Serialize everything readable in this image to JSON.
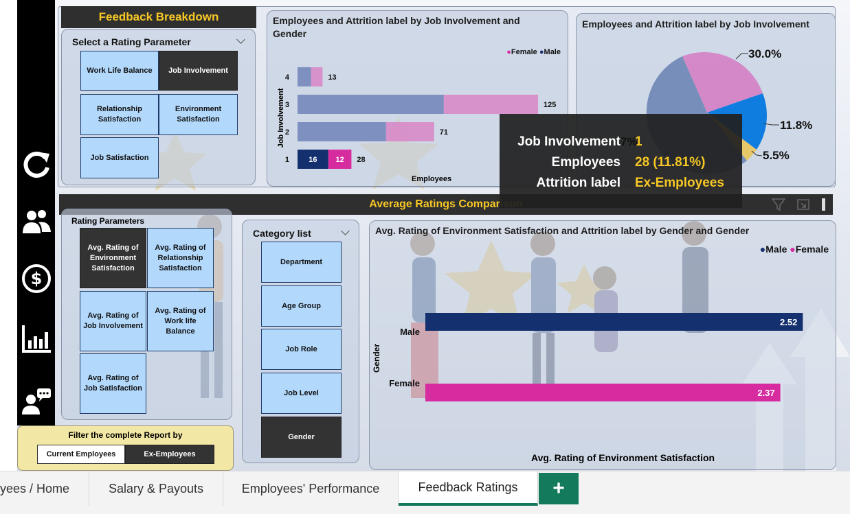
{
  "nav": {
    "icons": [
      "refresh-icon",
      "people-icon",
      "dollar-icon",
      "bar-chart-icon",
      "feedback-icon"
    ]
  },
  "feedback": {
    "title": "Feedback Breakdown",
    "select_label": "Select a Rating Parameter",
    "options": [
      "Work Life Balance",
      "Job Involvement",
      "Relationship Satisfaction",
      "Environment Satisfaction",
      "Job Satisfaction"
    ],
    "selected": "Job Involvement"
  },
  "bar_chart": {
    "title_line1": "Employees and Attrition label by Job Involvement and",
    "title_line2": "Gender",
    "legend": [
      {
        "name": "Female",
        "color": "#d62ca0"
      },
      {
        "name": "Male",
        "color": "#1a2f6e"
      }
    ],
    "ylabel": "Job Involvement",
    "xlabel": "Employees",
    "rows": [
      {
        "label": "4",
        "total": "13"
      },
      {
        "label": "3",
        "total": "125"
      },
      {
        "label": "2",
        "total": "71"
      },
      {
        "label": "1",
        "male": "16",
        "female": "12",
        "total": "28"
      }
    ]
  },
  "pie_chart": {
    "title": "Employees and Attrition label by Job Involvement",
    "labels": [
      "30.0%",
      "11.8%",
      "5.5%"
    ],
    "hidden_label": "7%"
  },
  "tooltip": {
    "k1": "Job Involvement",
    "v1": "1",
    "k2": "Employees",
    "v2": "28 (11.81%)",
    "k3": "Attrition label",
    "v3": "Ex-Employees"
  },
  "avg_section": {
    "title": "Average Ratings Comparison",
    "rating_label": "Rating Parameters",
    "rating_options": [
      "Avg. Rating of Environment Satisfaction",
      "Avg. Rating of Relationship Satisfaction",
      "Avg. Rating of Job Involvement",
      "Avg. Rating of Work life Balance",
      "Avg. Rating of Job Satisfaction"
    ],
    "category_label": "Category list",
    "categories": [
      "Department",
      "Age Group",
      "Job Role",
      "Job Level",
      "Gender"
    ],
    "selected_category": "Gender"
  },
  "avg_chart": {
    "title": "Avg. Rating of Environment Satisfaction and Attrition label by Gender and Gender",
    "legend": [
      {
        "name": "Male",
        "color": "#14306e"
      },
      {
        "name": "Female",
        "color": "#d62ca0"
      }
    ],
    "ylabel": "Gender",
    "xlabel": "Avg. Rating of Environment Satisfaction",
    "bars": [
      {
        "label": "Male",
        "value": "2.52"
      },
      {
        "label": "Female",
        "value": "2.37"
      }
    ]
  },
  "chart_data": [
    {
      "type": "bar",
      "title": "Employees and Attrition label by Job Involvement and Gender",
      "xlabel": "Employees",
      "ylabel": "Job Involvement",
      "categories": [
        "4",
        "3",
        "2",
        "1"
      ],
      "series": [
        {
          "name": "Male",
          "values": [
            7,
            76,
            46,
            16
          ]
        },
        {
          "name": "Female",
          "values": [
            6,
            49,
            25,
            12
          ]
        }
      ],
      "totals": [
        13,
        125,
        71,
        28
      ]
    },
    {
      "type": "pie",
      "title": "Employees and Attrition label by Job Involvement",
      "slice_labels": [
        "30.0%",
        "11.8%",
        "5.5%"
      ]
    },
    {
      "type": "bar",
      "title": "Avg. Rating of Environment Satisfaction and Attrition label by Gender and Gender",
      "xlabel": "Avg. Rating of Environment Satisfaction",
      "ylabel": "Gender",
      "categories": [
        "Male",
        "Female"
      ],
      "values": [
        2.52,
        2.37
      ]
    }
  ],
  "filter": {
    "label": "Filter the complete Report by",
    "options": [
      "Current Employees",
      "Ex-Employees"
    ],
    "selected": "Ex-Employees"
  },
  "tabs": {
    "items": [
      "yees / Home",
      "Salary & Payouts",
      "Employees' Performance",
      "Feedback Ratings"
    ],
    "active": "Feedback Ratings",
    "add_label": "+"
  }
}
